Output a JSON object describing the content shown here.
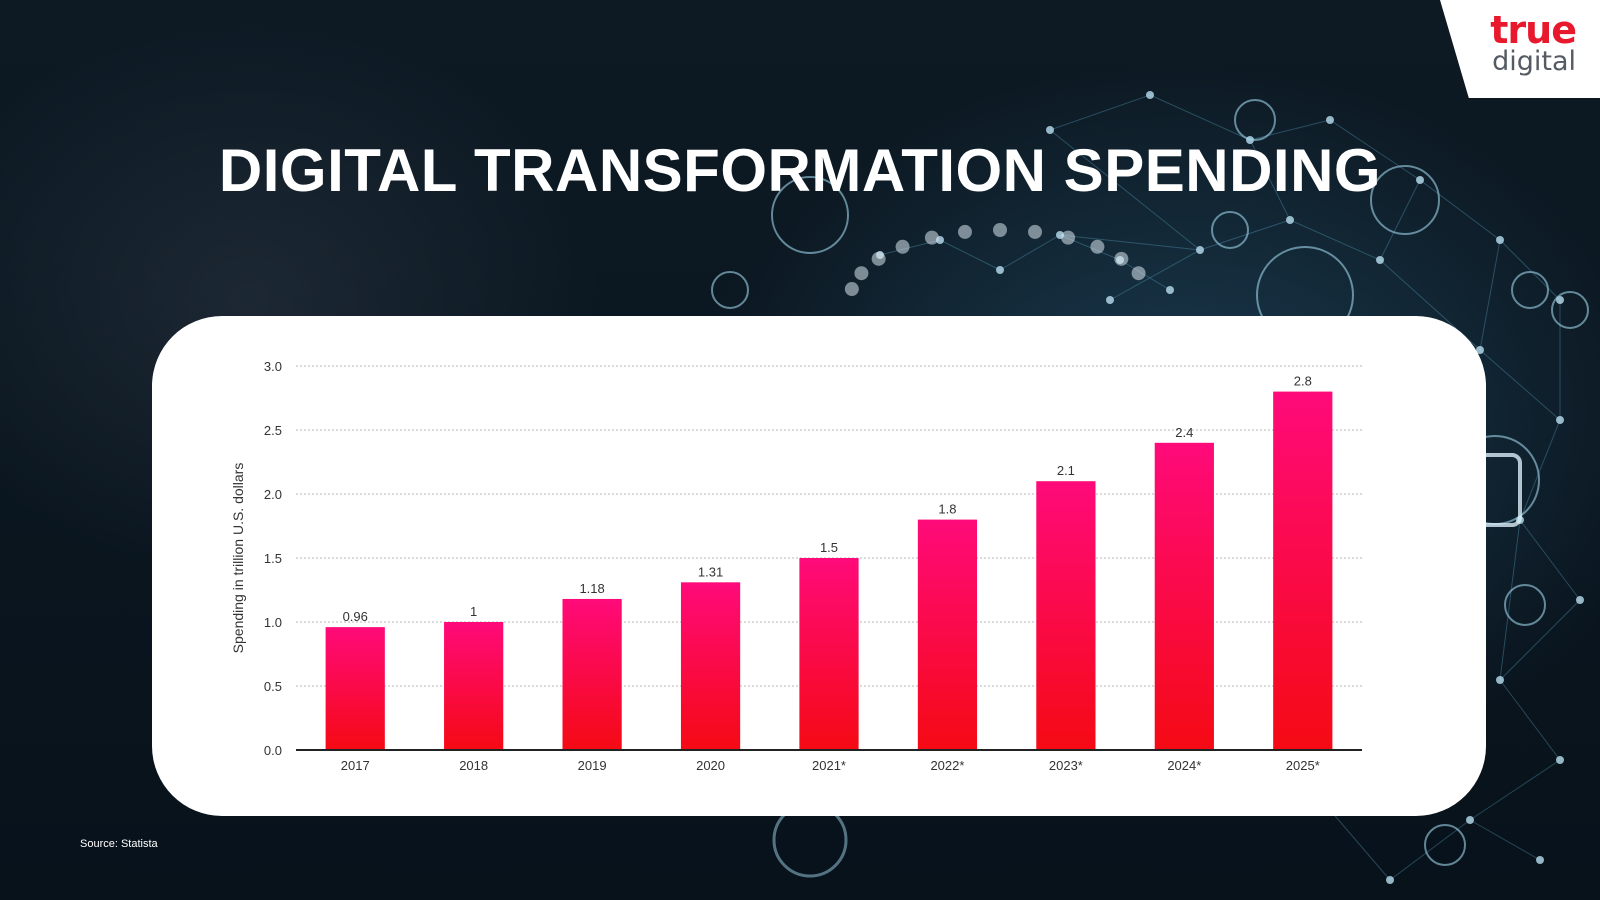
{
  "header": {
    "title": "DIGITAL TRANSFORMATION SPENDING",
    "logo": {
      "line1": "true",
      "line2": "digital",
      "color": "#e8192c"
    }
  },
  "footer": {
    "source": "Source: Statista"
  },
  "chart_data": {
    "type": "bar",
    "categories": [
      "2017",
      "2018",
      "2019",
      "2020",
      "2021*",
      "2022*",
      "2023*",
      "2024*",
      "2025*"
    ],
    "values": [
      0.96,
      1,
      1.18,
      1.31,
      1.5,
      1.8,
      2.1,
      2.4,
      2.8
    ],
    "value_labels": [
      "0.96",
      "1",
      "1.18",
      "1.31",
      "1.5",
      "1.8",
      "2.1",
      "2.4",
      "2.8"
    ],
    "title": "",
    "xlabel": "",
    "ylabel": "Spending in trillion U.S. dollars",
    "ylim": [
      0,
      3
    ],
    "yticks": [
      "0.0",
      "0.5",
      "1.0",
      "1.5",
      "2.0",
      "2.5",
      "3.0"
    ],
    "grid": true,
    "bar_color_top": "#ff0a7a",
    "bar_color_bottom": "#f50a14"
  }
}
